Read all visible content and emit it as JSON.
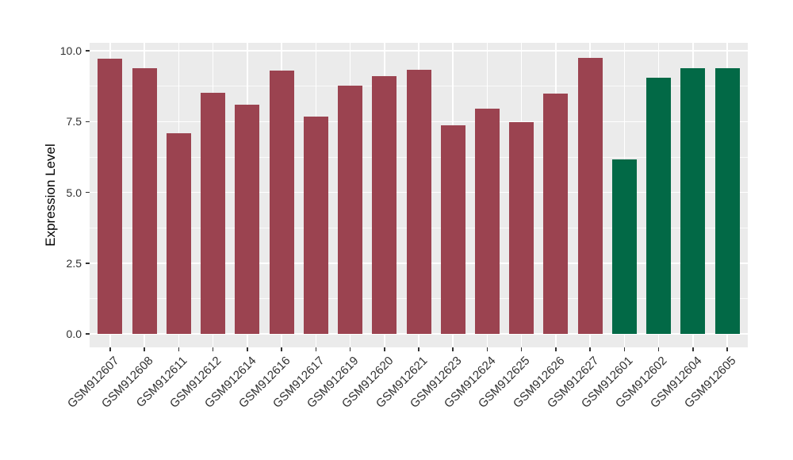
{
  "chart_data": {
    "type": "bar",
    "title": "",
    "xlabel": "",
    "ylabel": "Expression Level",
    "categories": [
      "GSM912607",
      "GSM912608",
      "GSM912611",
      "GSM912612",
      "GSM912614",
      "GSM912616",
      "GSM912617",
      "GSM912619",
      "GSM912620",
      "GSM912621",
      "GSM912623",
      "GSM912624",
      "GSM912625",
      "GSM912626",
      "GSM912627",
      "GSM912601",
      "GSM912602",
      "GSM912604",
      "GSM912605"
    ],
    "values": [
      9.73,
      9.4,
      7.09,
      8.52,
      8.1,
      9.31,
      7.68,
      8.77,
      9.11,
      9.33,
      7.37,
      7.96,
      7.48,
      8.48,
      9.75,
      6.17,
      9.04,
      9.39,
      9.39
    ],
    "bar_colors": [
      "#9B4350",
      "#9B4350",
      "#9B4350",
      "#9B4350",
      "#9B4350",
      "#9B4350",
      "#9B4350",
      "#9B4350",
      "#9B4350",
      "#9B4350",
      "#9B4350",
      "#9B4350",
      "#9B4350",
      "#9B4350",
      "#9B4350",
      "#026946",
      "#026946",
      "#026946",
      "#026946"
    ],
    "group_colors": {
      "default": "#9B4350",
      "highlight": "#026946"
    },
    "y_tick_labels": [
      "0.0",
      "2.5",
      "5.0",
      "7.5",
      "10.0"
    ],
    "y_tick_values": [
      0,
      2.5,
      5,
      7.5,
      10
    ],
    "y_minor_tick_values": [
      1.25,
      3.75,
      6.25,
      8.75
    ],
    "ylim": [
      -0.48,
      10.31
    ],
    "grid": true,
    "legend_position": "none",
    "panel_background": "#EBEBEB",
    "gridline_color": "#FFFFFF"
  }
}
